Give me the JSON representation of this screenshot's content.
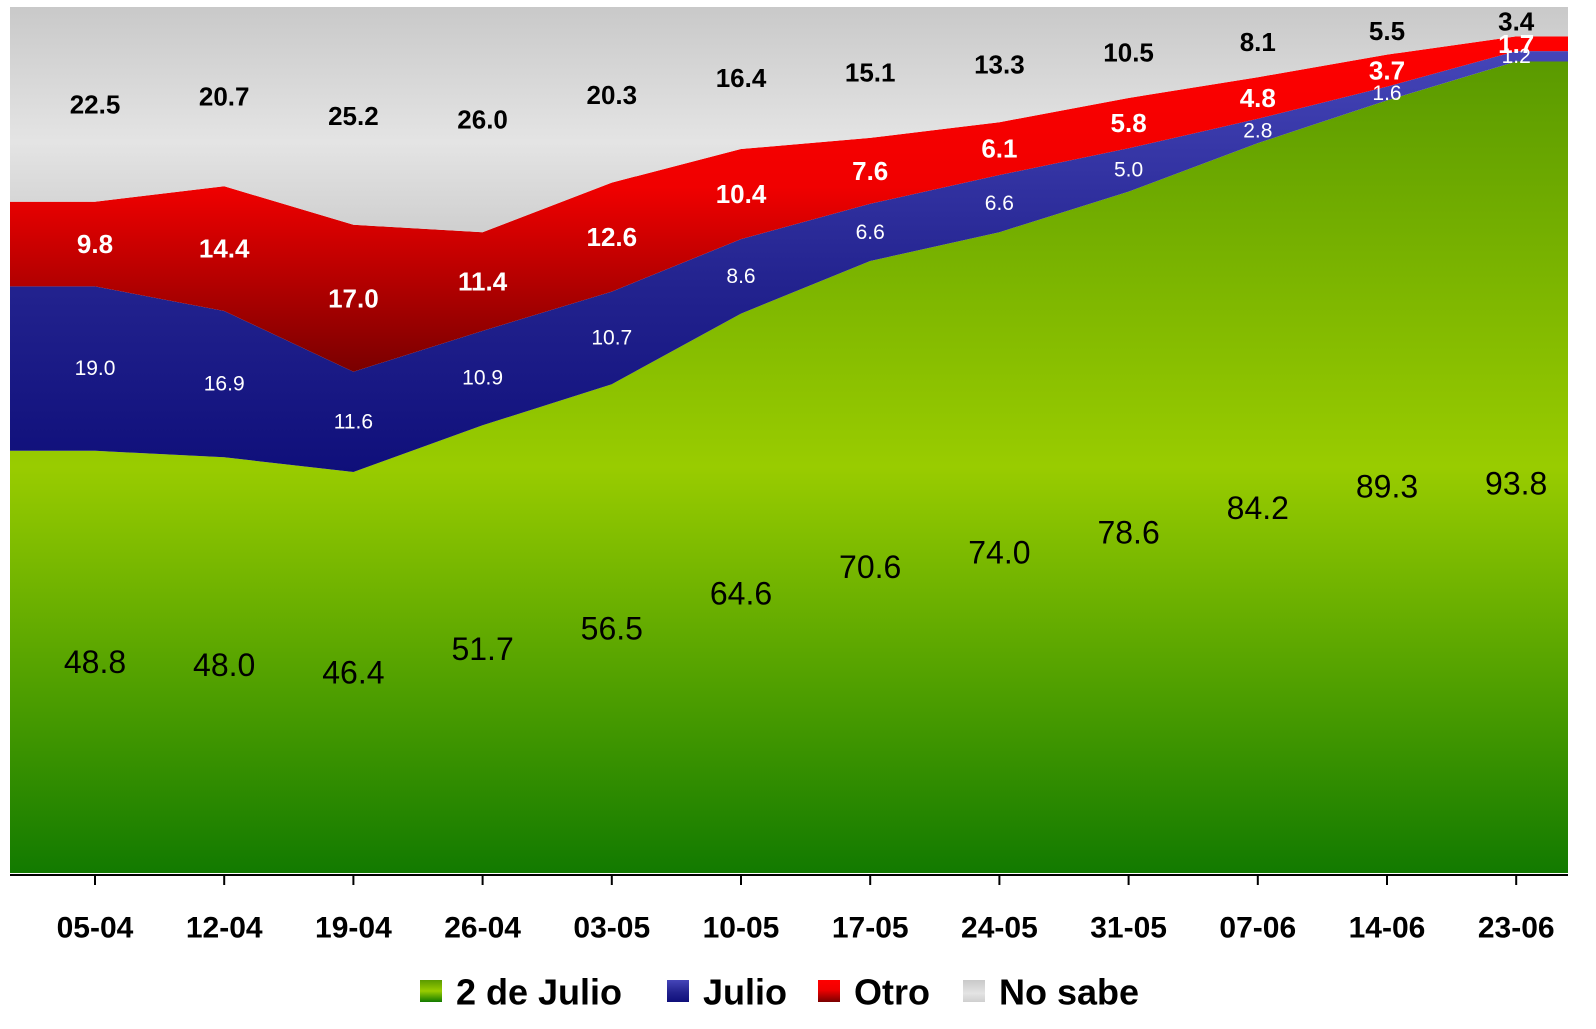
{
  "chart_data": {
    "type": "area",
    "stacked": true,
    "normalized": true,
    "categories": [
      "05-04",
      "12-04",
      "19-04",
      "26-04",
      "03-05",
      "10-05",
      "17-05",
      "24-05",
      "31-05",
      "07-06",
      "14-06",
      "23-06"
    ],
    "series": [
      {
        "name": "2 de Julio",
        "color": "#5fae00",
        "values": [
          48.8,
          48.0,
          46.4,
          51.7,
          56.5,
          64.6,
          70.6,
          74.0,
          78.6,
          84.2,
          89.3,
          93.8
        ]
      },
      {
        "name": "Julio",
        "color": "#1c1c8e",
        "values": [
          19.0,
          16.9,
          11.6,
          10.9,
          10.7,
          8.6,
          6.6,
          6.6,
          5.0,
          2.8,
          1.6,
          1.2
        ]
      },
      {
        "name": "Otro",
        "color": "#e00000",
        "values": [
          9.8,
          14.4,
          17.0,
          11.4,
          12.6,
          10.4,
          7.6,
          6.1,
          5.8,
          4.8,
          3.7,
          1.7
        ]
      },
      {
        "name": "No sabe",
        "color": "#cfcfcf",
        "values": [
          22.5,
          20.7,
          25.2,
          26.0,
          20.3,
          16.4,
          15.1,
          13.3,
          10.5,
          8.1,
          5.5,
          3.4
        ]
      }
    ],
    "labels": {
      "2 de Julio": [
        "48.8",
        "48.0",
        "46.4",
        "51.7",
        "56.5",
        "64.6",
        "70.6",
        "74.0",
        "78.6",
        "84.2",
        "89.3",
        "93.8"
      ],
      "Julio": [
        "19.0",
        "16.9",
        "11.6",
        "10.9",
        "10.7",
        "8.6",
        "6.6",
        "6.6",
        "5.0",
        "2.8",
        "1.6",
        "1.2"
      ],
      "Otro": [
        "9.8",
        "14.4",
        "17.0",
        "11.4",
        "12.6",
        "10.4",
        "7.6",
        "6.1",
        "5.8",
        "4.8",
        "3.7",
        "1.7"
      ],
      "No sabe": [
        "22.5",
        "20.7",
        "25.2",
        "26.0",
        "20.3",
        "16.4",
        "15.1",
        "13.3",
        "10.5",
        "8.1",
        "5.5",
        "3.4"
      ]
    },
    "ylim": [
      0,
      100
    ],
    "grid": false,
    "legend_position": "bottom"
  }
}
